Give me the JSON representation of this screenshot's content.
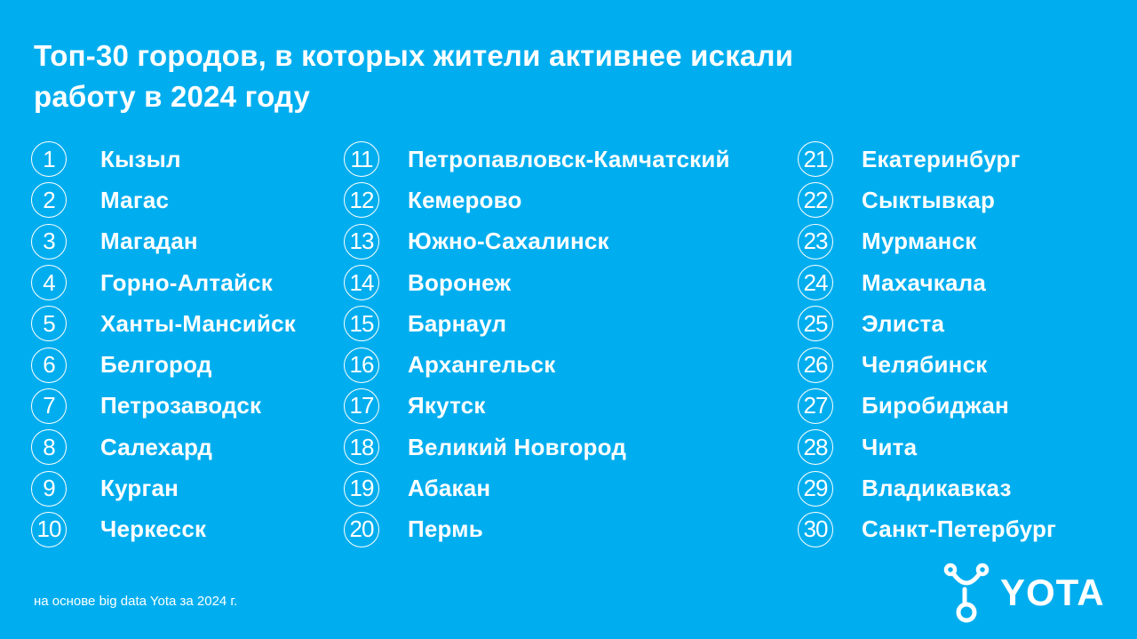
{
  "title_line1": "Топ-30 городов, в которых жители активнее искали",
  "title_line2": "работу в 2024 году",
  "columns": [
    [
      {
        "num": "1",
        "city": "Кызыл"
      },
      {
        "num": "2",
        "city": "Магас"
      },
      {
        "num": "3",
        "city": "Магадан"
      },
      {
        "num": "4",
        "city": "Горно-Алтайск"
      },
      {
        "num": "5",
        "city": "Ханты-Мансийск"
      },
      {
        "num": "6",
        "city": "Белгород"
      },
      {
        "num": "7",
        "city": "Петрозаводск"
      },
      {
        "num": "8",
        "city": "Салехард"
      },
      {
        "num": "9",
        "city": "Курган"
      },
      {
        "num": "10",
        "city": "Черкесск"
      }
    ],
    [
      {
        "num": "11",
        "city": "Петропавловск-Камчатский"
      },
      {
        "num": "12",
        "city": "Кемерово"
      },
      {
        "num": "13",
        "city": "Южно-Сахалинск"
      },
      {
        "num": "14",
        "city": "Воронеж"
      },
      {
        "num": "15",
        "city": "Барнаул"
      },
      {
        "num": "16",
        "city": "Архангельск"
      },
      {
        "num": "17",
        "city": "Якутск"
      },
      {
        "num": "18",
        "city": "Великий Новгород"
      },
      {
        "num": "19",
        "city": "Абакан"
      },
      {
        "num": "20",
        "city": "Пермь"
      }
    ],
    [
      {
        "num": "21",
        "city": "Екатеринбург"
      },
      {
        "num": "22",
        "city": "Сыктывкар"
      },
      {
        "num": "23",
        "city": "Мурманск"
      },
      {
        "num": "24",
        "city": "Махачкала"
      },
      {
        "num": "25",
        "city": "Элиста"
      },
      {
        "num": "26",
        "city": "Челябинск"
      },
      {
        "num": "27",
        "city": "Биробиджан"
      },
      {
        "num": "28",
        "city": "Чита"
      },
      {
        "num": "29",
        "city": "Владикавказ"
      },
      {
        "num": "30",
        "city": "Санкт-Петербург"
      }
    ]
  ],
  "footnote": "на основе big data Yota за 2024 г.",
  "logo_text": "YOTA",
  "colors": {
    "background": "#00aeef",
    "text": "#ffffff"
  }
}
